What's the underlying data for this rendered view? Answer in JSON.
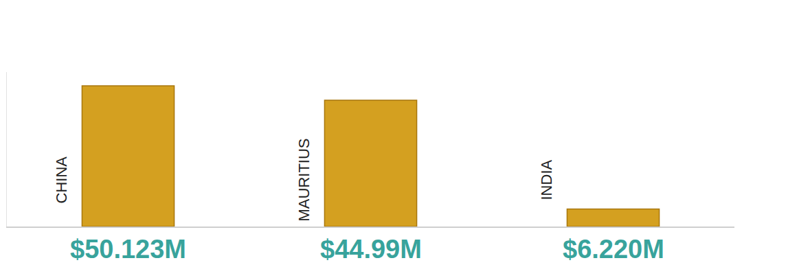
{
  "chart_data": {
    "type": "bar",
    "categories": [
      "CHINA",
      "MAURITIUS",
      "INDIA"
    ],
    "values": [
      50.123,
      44.99,
      6.22
    ],
    "value_labels": [
      "$50.123M",
      "$44.99M",
      "$6.220M"
    ],
    "color": "#d4a020",
    "ylim": [
      0,
      55
    ],
    "grid": false,
    "data_labels": true,
    "tick_labels": false
  }
}
